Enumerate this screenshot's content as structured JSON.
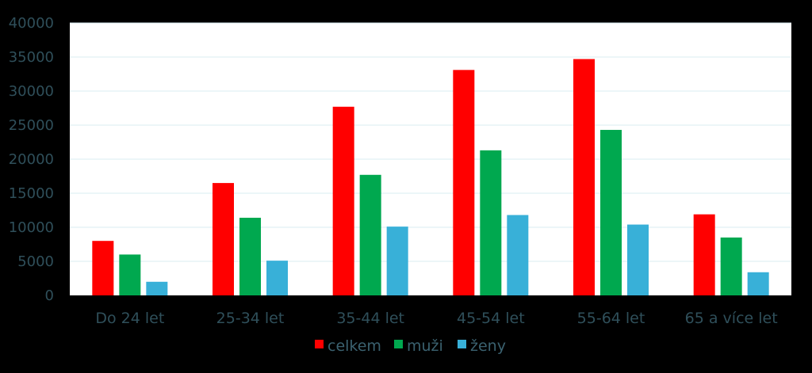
{
  "chart_data": {
    "type": "bar",
    "categories": [
      "Do 24 let",
      "25-34 let",
      "35-44 let",
      "45-54 let",
      "55-64 let",
      "65 a více let"
    ],
    "series": [
      {
        "name": "celkem",
        "color": "#ff0000",
        "values": [
          8000,
          16500,
          27700,
          33100,
          34700,
          11900
        ]
      },
      {
        "name": "muži",
        "color": "#00a84f",
        "values": [
          6000,
          11400,
          17700,
          21300,
          24300,
          8500
        ]
      },
      {
        "name": "ženy",
        "color": "#38b0d8",
        "values": [
          2000,
          5100,
          10100,
          11800,
          10400,
          3400
        ]
      }
    ],
    "ylim": [
      0,
      40000
    ],
    "yticks": [
      "0",
      "5000",
      "10000",
      "15000",
      "20000",
      "25000",
      "30000",
      "35000",
      "40000"
    ],
    "grid": true,
    "legend_position": "bottom",
    "plot_background": "#ffffff",
    "page_background": "#000000",
    "gridline_color": "#d9ecf2"
  }
}
